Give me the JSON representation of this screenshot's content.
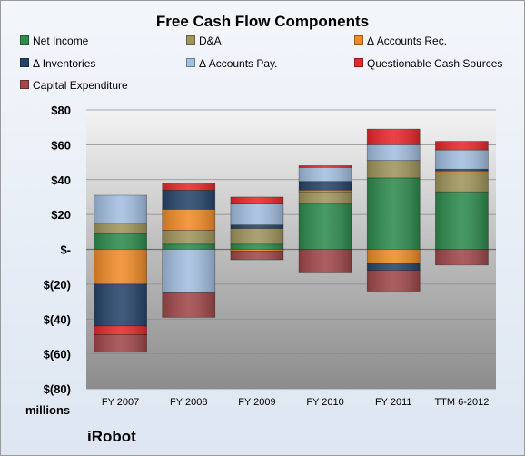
{
  "chart_data": {
    "type": "bar",
    "stacked": true,
    "title": "Free Cash Flow Components",
    "unit_label": "millions",
    "source_label": "iRobot",
    "categories": [
      "FY 2007",
      "FY 2008",
      "FY 2009",
      "FY 2010",
      "FY 2011",
      "TTM 6-2012"
    ],
    "yticks": [
      "$80",
      "$60",
      "$40",
      "$20",
      "$-",
      "$(20)",
      "$(40)",
      "$(60)",
      "$(80)"
    ],
    "ylim": [
      -80,
      80
    ],
    "grid": true,
    "legend_position": "top",
    "series": [
      {
        "name": "Net Income",
        "color": "#2e8b4e",
        "values": [
          9,
          3,
          3,
          26,
          41,
          33
        ]
      },
      {
        "name": "D&A",
        "color": "#a0955c",
        "values": [
          6,
          8,
          9,
          7,
          10,
          11
        ]
      },
      {
        "name": "Δ Accounts Rec.",
        "color": "#f08c28",
        "values": [
          -20,
          12,
          -1,
          1,
          -8,
          1
        ]
      },
      {
        "name": "Δ Inventories",
        "color": "#26446a",
        "values": [
          -24,
          11,
          2,
          5,
          -4,
          1
        ]
      },
      {
        "name": "Δ Accounts Pay.",
        "color": "#a3bfe0",
        "values": [
          16,
          -25,
          12,
          8,
          9,
          11
        ]
      },
      {
        "name": "Questionable Cash Sources",
        "color": "#e8282c",
        "values": [
          -5,
          4,
          4,
          1,
          9,
          5
        ]
      },
      {
        "name": "Capital Expenditure",
        "color": "#a0484a",
        "values": [
          -10,
          -14,
          -5,
          -13,
          -12,
          -9
        ]
      }
    ]
  }
}
